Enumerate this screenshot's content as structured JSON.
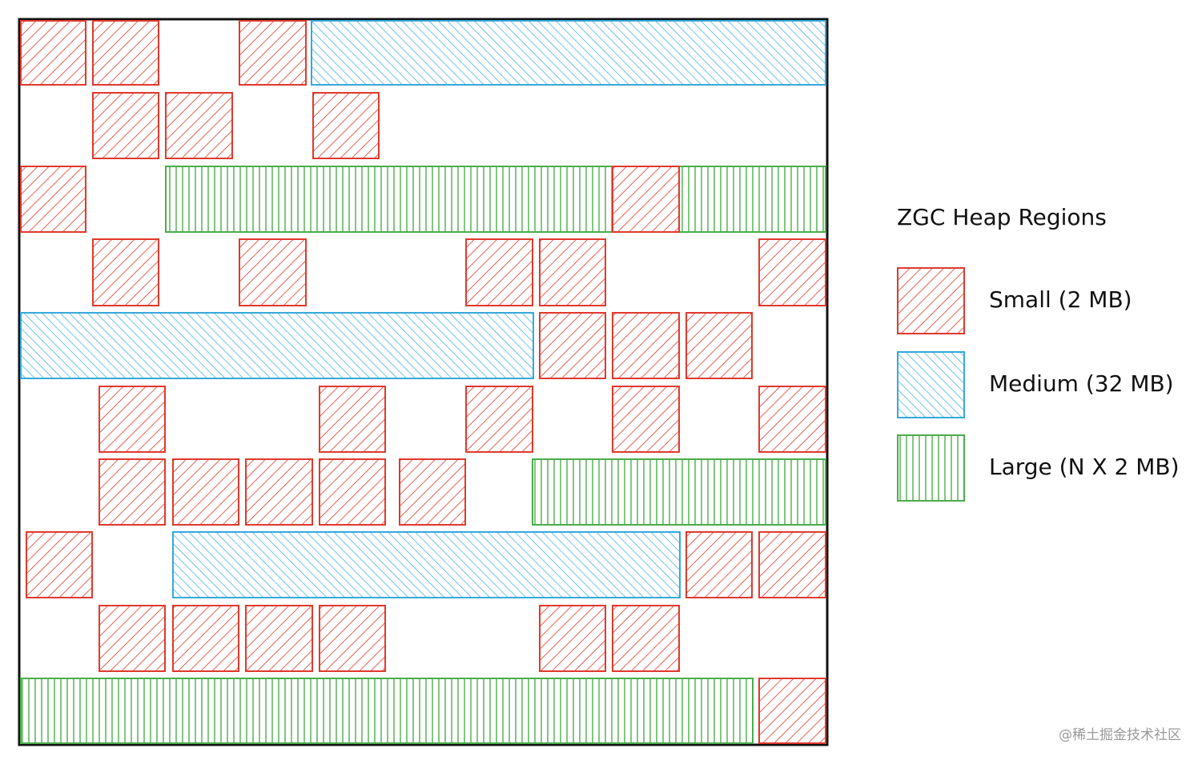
{
  "legend": {
    "title": "ZGC Heap Regions",
    "items": [
      "Small (2 MB)",
      "Medium (32 MB)",
      "Large (N X 2 MB)"
    ]
  },
  "watermark": "@稀土掘金技术社区"
}
